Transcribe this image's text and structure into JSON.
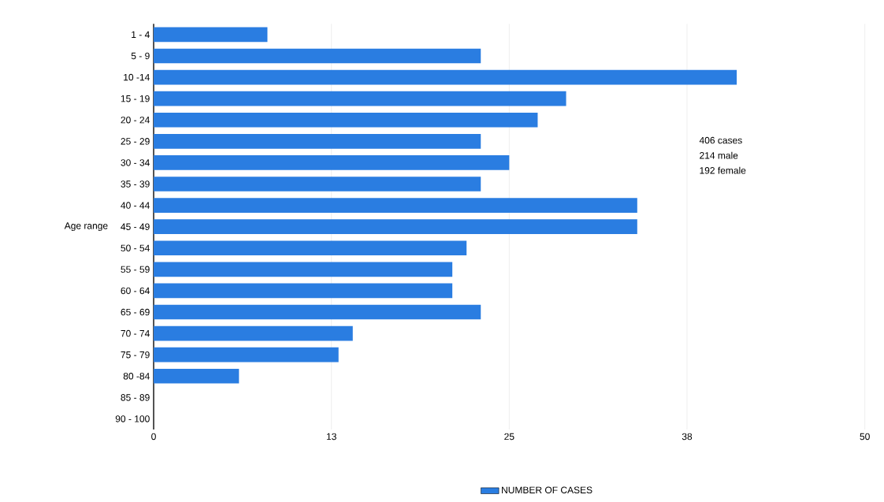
{
  "chart_data": {
    "type": "bar",
    "orientation": "horizontal",
    "ylabel": "Age range",
    "categories": [
      "1 - 4",
      "5 - 9",
      "10 -14",
      "15 - 19",
      "20 - 24",
      "25 - 29",
      "30 - 34",
      "35 - 39",
      "40 - 44",
      "45 - 49",
      "50 - 54",
      "55 - 59",
      "60 - 64",
      "65 - 69",
      "70 - 74",
      "75 - 79",
      "80 -84",
      "85 - 89",
      "90 - 100"
    ],
    "series": [
      {
        "name": "NUMBER OF CASES",
        "color": "#2a7de1",
        "values": [
          8,
          23,
          41,
          29,
          27,
          23,
          25,
          23,
          34,
          34,
          22,
          21,
          21,
          23,
          14,
          13,
          6,
          0,
          0
        ]
      }
    ],
    "xlim": [
      0,
      50
    ],
    "xticks": [
      0,
      {
        "value": 12.5,
        "label": "13"
      },
      25,
      {
        "value": 37.5,
        "label": "38"
      },
      50
    ],
    "grid": "x",
    "legend": "bottom",
    "annotations": [
      "406 cases",
      "214 male",
      "192 female"
    ]
  }
}
